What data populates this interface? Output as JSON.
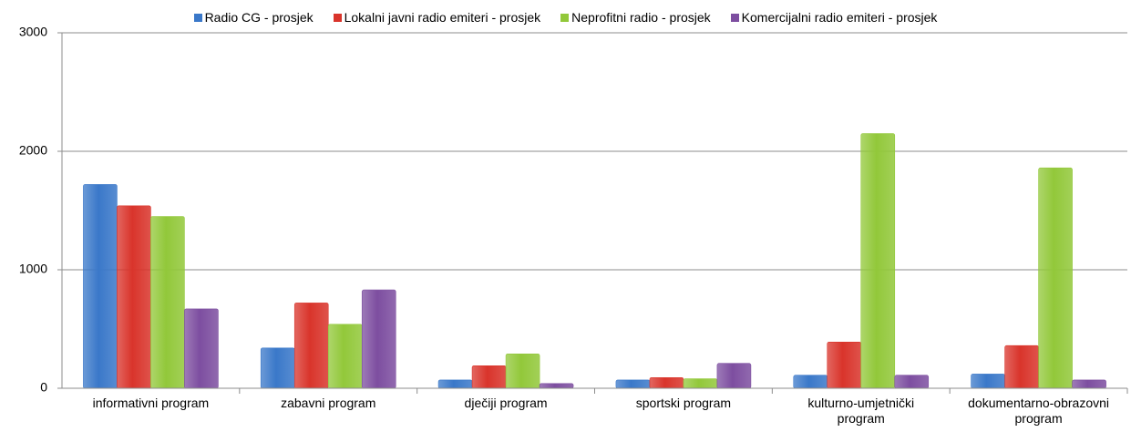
{
  "chart_data": {
    "type": "bar",
    "categories": [
      "informativni program",
      "zabavni program",
      "dječiji program",
      "sportski program",
      "kulturno-umjetnički program",
      "dokumentarno-obrazovni program"
    ],
    "series": [
      {
        "name": "Radio CG - prosjek",
        "color": "#3a78c9",
        "values": [
          1720,
          340,
          70,
          70,
          110,
          120
        ]
      },
      {
        "name": "Lokalni javni radio emiteri - prosjek",
        "color": "#d9342b",
        "values": [
          1540,
          720,
          190,
          90,
          390,
          360
        ]
      },
      {
        "name": "Neprofitni radio - prosjek",
        "color": "#92c83a",
        "values": [
          1450,
          540,
          290,
          80,
          2150,
          1860
        ]
      },
      {
        "name": "Komercijalni radio emiteri - prosjek",
        "color": "#7d4ea0",
        "values": [
          670,
          830,
          40,
          210,
          110,
          70
        ]
      }
    ],
    "ylim": [
      0,
      3000
    ],
    "yticks": [
      0,
      1000,
      2000,
      3000
    ],
    "grid": true,
    "legend": "top"
  }
}
